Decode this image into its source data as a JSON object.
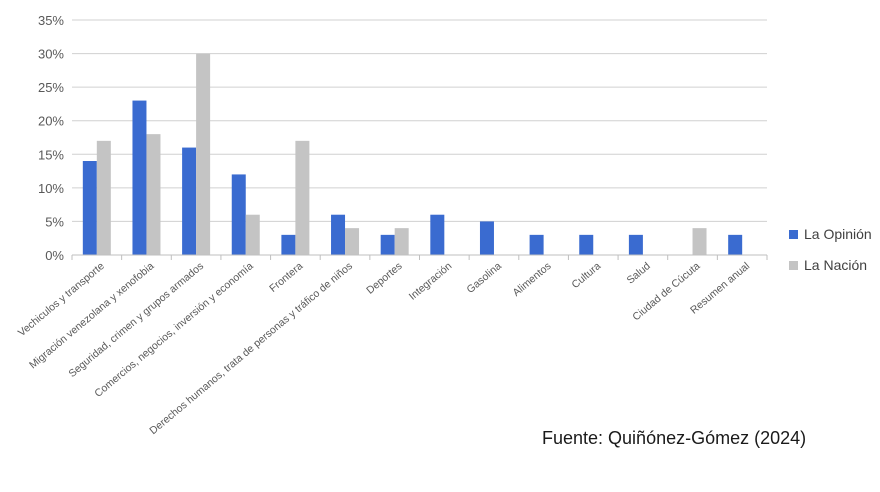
{
  "chart_data": {
    "type": "bar",
    "categories": [
      "Vechiculos y transporte",
      "Migración venezolana y xenofobia",
      "Seguridad, crimen y grupos armados",
      "Comercios, negocios, inversión y economía",
      "Frontera",
      "Derechos humanos, trata de personas y tráfico de niños",
      "Deportes",
      "Integración",
      "Gasolina",
      "Alimentos",
      "Cultura",
      "Salud",
      "Ciudad de Cúcuta",
      "Resumen anual"
    ],
    "series": [
      {
        "name": "La Opinión",
        "values": [
          14,
          23,
          16,
          12,
          3,
          6,
          3,
          6,
          5,
          3,
          3,
          3,
          0,
          3
        ],
        "color": "#3a6bd0"
      },
      {
        "name": "La Nación",
        "values": [
          17,
          18,
          30,
          6,
          17,
          4,
          4,
          0,
          0,
          0,
          0,
          0,
          4,
          0
        ],
        "color": "#c4c4c4"
      }
    ],
    "y_ticks": [
      0,
      5,
      10,
      15,
      20,
      25,
      30,
      35
    ],
    "y_tick_labels": [
      "0%",
      "5%",
      "10%",
      "15%",
      "20%",
      "25%",
      "30%",
      "35%"
    ],
    "ylim": [
      0,
      35
    ],
    "grid": true,
    "legend_position": "right",
    "title": "",
    "xlabel": "",
    "ylabel": ""
  },
  "source_note": "Fuente: Quiñónez-Gómez (2024)"
}
